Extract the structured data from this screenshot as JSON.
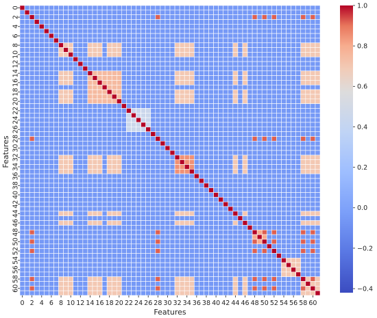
{
  "chart_data": {
    "type": "heatmap",
    "xlabel": "Features",
    "ylabel": "Features",
    "n": 62,
    "x_tick_labels": [
      "0",
      "2",
      "4",
      "6",
      "8",
      "10",
      "12",
      "14",
      "16",
      "18",
      "20",
      "22",
      "24",
      "26",
      "28",
      "30",
      "32",
      "34",
      "36",
      "38",
      "40",
      "42",
      "44",
      "46",
      "48",
      "50",
      "52",
      "54",
      "56",
      "58",
      "60"
    ],
    "y_tick_labels": [
      "0",
      "2",
      "4",
      "6",
      "8",
      "10",
      "12",
      "14",
      "16",
      "18",
      "20",
      "22",
      "24",
      "26",
      "28",
      "30",
      "32",
      "34",
      "36",
      "38",
      "40",
      "42",
      "44",
      "46",
      "48",
      "50",
      "52",
      "54",
      "56",
      "58",
      "60"
    ],
    "colorbar": {
      "colormap": "coolwarm",
      "vmin": -0.42,
      "vmax": 1.0,
      "tick_labels": [
        "1.0",
        "0.8",
        "0.6",
        "0.4",
        "0.2",
        "0.0",
        "−0.2",
        "−0.4"
      ],
      "tick_values": [
        1.0,
        0.8,
        0.6,
        0.4,
        0.2,
        0.0,
        -0.2,
        -0.4
      ]
    },
    "diagonal_value": 1.0,
    "background_value": -0.05,
    "blocks": [
      {
        "features": [
          2,
          28,
          48,
          50,
          52,
          58,
          60
        ],
        "value": 0.92
      },
      {
        "features": [
          8,
          9,
          10,
          14,
          15,
          16,
          18,
          19,
          20,
          32,
          33,
          34,
          35,
          44,
          46,
          58,
          59,
          60,
          61
        ],
        "value": 0.7
      },
      {
        "features": [
          14,
          15,
          16,
          17,
          18,
          19,
          20
        ],
        "value": 0.75
      },
      {
        "features": [
          22,
          23,
          24,
          25,
          26
        ],
        "value": 0.45
      },
      {
        "features": [
          32,
          33,
          34,
          35
        ],
        "value": 0.85
      },
      {
        "features": [
          48,
          49,
          50
        ],
        "value": 0.8
      },
      {
        "features": [
          54,
          55,
          56,
          57
        ],
        "value": 0.7
      }
    ]
  }
}
